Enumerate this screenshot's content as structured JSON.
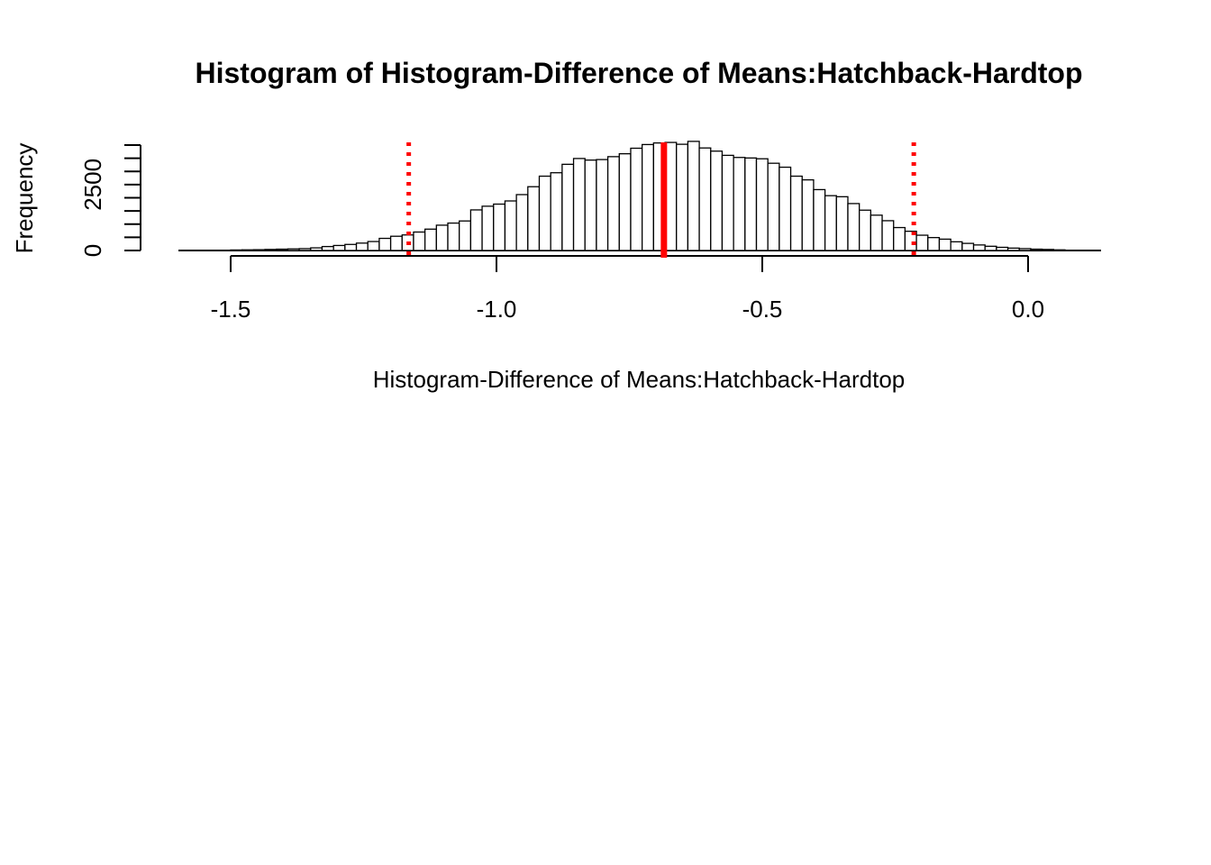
{
  "chart_data": {
    "type": "bar",
    "title": "Histogram of  Histogram-Difference of Means:Hatchback-Hardtop",
    "xlabel": "Histogram-Difference of Means:Hatchback-Hardtop",
    "ylabel": "Frequency",
    "xlim": [
      -1.6,
      0.13
    ],
    "ylim": [
      0,
      4200
    ],
    "x_ticks": [
      -1.5,
      -1.0,
      -0.5,
      0.0
    ],
    "x_tick_labels": [
      "-1.5",
      "-1.0",
      "-0.5",
      "0.0"
    ],
    "y_ticks": [
      0,
      2500
    ],
    "y_tick_labels": [
      "0",
      "2500"
    ],
    "y_minor_ticks": [
      500,
      1000,
      1500,
      2000,
      3000,
      3500,
      4000
    ],
    "grid": false,
    "bin_width": 0.0215,
    "bin_start": -1.5,
    "counts": [
      20,
      25,
      30,
      40,
      50,
      60,
      70,
      100,
      150,
      190,
      230,
      280,
      340,
      460,
      540,
      590,
      700,
      810,
      960,
      1040,
      1120,
      1540,
      1680,
      1760,
      1880,
      2120,
      2420,
      2820,
      2950,
      3270,
      3490,
      3430,
      3450,
      3560,
      3670,
      3880,
      4020,
      4080,
      4100,
      4030,
      4140,
      3890,
      3770,
      3610,
      3530,
      3510,
      3480,
      3310,
      3160,
      2820,
      2680,
      2310,
      2080,
      2040,
      1780,
      1530,
      1340,
      1130,
      870,
      730,
      580,
      490,
      430,
      330,
      270,
      210,
      160,
      120,
      90,
      70,
      50,
      40,
      25
    ],
    "reference_lines": [
      {
        "x": -0.685,
        "style": "solid",
        "color": "#ff0000"
      },
      {
        "x": -1.165,
        "style": "dotted",
        "color": "#ff0000"
      },
      {
        "x": -0.215,
        "style": "dotted",
        "color": "#ff0000"
      }
    ],
    "bar_fill": "#ffffff",
    "bar_stroke": "#000000"
  }
}
